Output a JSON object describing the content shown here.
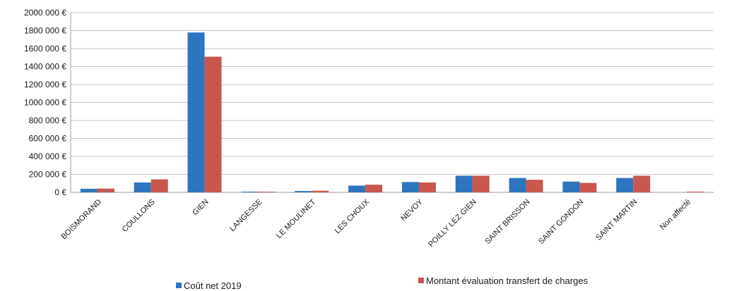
{
  "chart_data": {
    "type": "bar",
    "categories": [
      "BOISMORAND",
      "COULLONS",
      "GIEN",
      "LANGESSE",
      "LE MOULINET",
      "LES CHOUX",
      "NEVOY",
      "POILLY LEZ GIEN",
      "SAINT BRISSON",
      "SAINT GONDON",
      "SAINT MARTIN",
      "Non affecté"
    ],
    "series": [
      {
        "name": "Coût net 2019",
        "color": "#2E75C0",
        "values": [
          40000,
          110000,
          1780000,
          5000,
          15000,
          75000,
          115000,
          185000,
          160000,
          120000,
          160000,
          0
        ]
      },
      {
        "name": "Montant  évaluation transfert de charges",
        "color": "#C9574E",
        "values": [
          42000,
          145000,
          1510000,
          3000,
          18000,
          85000,
          110000,
          185000,
          140000,
          105000,
          185000,
          8000
        ]
      }
    ],
    "y_ticks": [
      "0 €",
      "200 000 €",
      "400 000 €",
      "600 000 €",
      "800 000 €",
      "1000 000 €",
      "1200 000 €",
      "1400 000 €",
      "1600 000 €",
      "1800 000 €",
      "2000 000 €"
    ],
    "ylim": [
      0,
      2000000
    ],
    "grid": true,
    "legend_position": "bottom"
  }
}
